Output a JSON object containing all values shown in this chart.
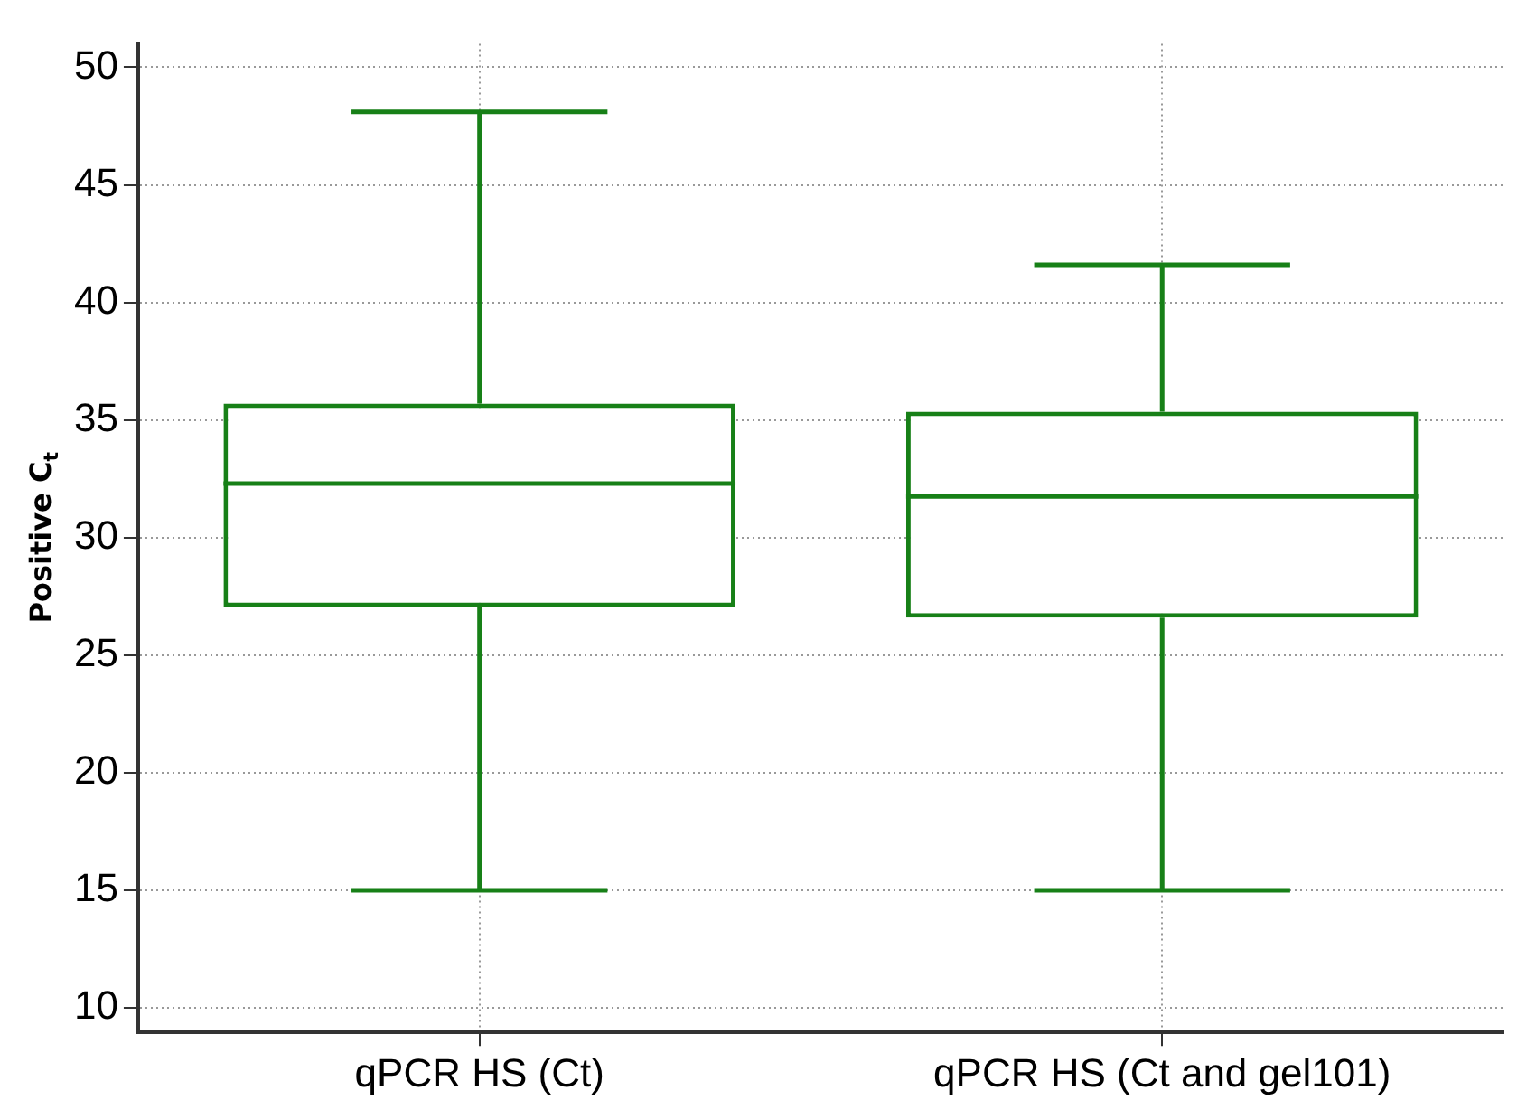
{
  "chart_data": {
    "type": "box",
    "ylabel": "Positive C$_{t}$",
    "categories": [
      "qPCR HS (Ct)",
      "qPCR HS (Ct and gel101)"
    ],
    "boxes": [
      {
        "low": 15,
        "q1": 27.05,
        "median": 32.3,
        "q3": 35.7,
        "high": 48.1
      },
      {
        "low": 15,
        "q1": 26.6,
        "median": 31.75,
        "q3": 35.35,
        "high": 41.6
      }
    ],
    "color": "#178017",
    "ylim": [
      9,
      51
    ],
    "yticks": [
      10,
      15,
      20,
      25,
      30,
      35,
      40,
      45,
      50
    ],
    "grid": true
  }
}
